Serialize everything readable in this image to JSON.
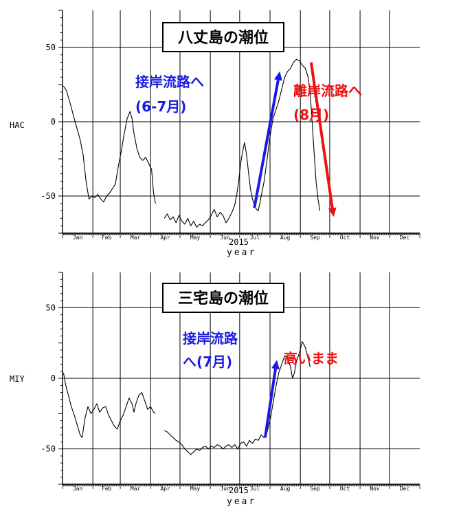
{
  "chart_data": [
    {
      "type": "line",
      "title": "八丈島の潮位",
      "ylabel": "HAC",
      "xlabel": "year",
      "year_label": "2015",
      "ylim": [
        -75,
        75
      ],
      "yticks": [
        50,
        0,
        -50
      ],
      "month_labels": [
        "Jan",
        "Feb",
        "Mar",
        "Apr",
        "May",
        "Jun",
        "Jul",
        "Aug",
        "Sep",
        "Oct",
        "Nov",
        "Dec"
      ],
      "grid": true,
      "series": [
        {
          "color": "#000000",
          "segments": [
            [
              [
                1,
                24
              ],
              [
                4,
                21
              ],
              [
                8,
                12
              ],
              [
                12,
                2
              ],
              [
                15,
                -5
              ],
              [
                18,
                -12
              ],
              [
                21,
                -22
              ],
              [
                24,
                -40
              ],
              [
                27,
                -52
              ],
              [
                30,
                -50
              ],
              [
                33,
                -51
              ],
              [
                36,
                -49
              ],
              [
                39,
                -52
              ],
              [
                42,
                -54
              ],
              [
                45,
                -50
              ],
              [
                48,
                -48
              ],
              [
                51,
                -45
              ],
              [
                54,
                -42
              ],
              [
                57,
                -30
              ],
              [
                60,
                -20
              ],
              [
                63,
                -8
              ],
              [
                66,
                2
              ],
              [
                69,
                7
              ],
              [
                71,
                2
              ],
              [
                73,
                -8
              ],
              [
                76,
                -18
              ],
              [
                79,
                -24
              ],
              [
                82,
                -26
              ],
              [
                85,
                -24
              ],
              [
                88,
                -28
              ],
              [
                91,
                -32
              ],
              [
                93,
                -48
              ],
              [
                95,
                -55
              ]
            ],
            [
              [
                104,
                -65
              ],
              [
                107,
                -62
              ],
              [
                110,
                -66
              ],
              [
                113,
                -64
              ],
              [
                116,
                -68
              ],
              [
                119,
                -63
              ],
              [
                122,
                -67
              ],
              [
                125,
                -69
              ],
              [
                128,
                -65
              ],
              [
                131,
                -70
              ],
              [
                134,
                -67
              ],
              [
                137,
                -71
              ],
              [
                140,
                -69
              ],
              [
                143,
                -70
              ],
              [
                146,
                -68
              ],
              [
                149,
                -66
              ],
              [
                152,
                -63
              ],
              [
                155,
                -59
              ],
              [
                158,
                -64
              ],
              [
                161,
                -61
              ],
              [
                164,
                -63
              ],
              [
                167,
                -68
              ],
              [
                170,
                -65
              ],
              [
                173,
                -61
              ],
              [
                176,
                -56
              ],
              [
                178,
                -49
              ],
              [
                180,
                -40
              ],
              [
                182,
                -28
              ],
              [
                184,
                -20
              ],
              [
                186,
                -14
              ],
              [
                188,
                -22
              ],
              [
                190,
                -34
              ],
              [
                192,
                -45
              ],
              [
                194,
                -52
              ],
              [
                197,
                -58
              ],
              [
                200,
                -60
              ],
              [
                203,
                -50
              ],
              [
                206,
                -40
              ],
              [
                209,
                -25
              ],
              [
                212,
                -10
              ],
              [
                215,
                2
              ],
              [
                218,
                8
              ],
              [
                221,
                14
              ],
              [
                224,
                22
              ],
              [
                227,
                30
              ],
              [
                230,
                34
              ],
              [
                233,
                36
              ],
              [
                236,
                40
              ],
              [
                239,
                42
              ],
              [
                242,
                41
              ],
              [
                245,
                38
              ],
              [
                248,
                36
              ],
              [
                251,
                30
              ],
              [
                253,
                20
              ],
              [
                255,
                0
              ],
              [
                257,
                -20
              ],
              [
                259,
                -40
              ],
              [
                261,
                -52
              ],
              [
                263,
                -60
              ]
            ]
          ]
        }
      ],
      "arrows": [
        {
          "color": "#1a1ae6",
          "from": [
            196,
            -58
          ],
          "to": [
            222,
            34
          ]
        },
        {
          "color": "#ee1111",
          "from": [
            254,
            40
          ],
          "to": [
            277,
            -64
          ]
        }
      ],
      "annotations": [
        {
          "text": "接岸流路へ",
          "color": "#1a1ae6"
        },
        {
          "text": "(6-7月)",
          "color": "#1a1ae6"
        },
        {
          "text": "離岸流路へ",
          "color": "#ee1111"
        },
        {
          "text": "(8月)",
          "color": "#ee1111"
        }
      ]
    },
    {
      "type": "line",
      "title": "三宅島の潮位",
      "ylabel": "MIY",
      "xlabel": "year",
      "year_label": "2015",
      "ylim": [
        -75,
        75
      ],
      "yticks": [
        50,
        0,
        -50
      ],
      "month_labels": [
        "Jan",
        "Feb",
        "Mar",
        "Apr",
        "May",
        "Jun",
        "Jul",
        "Aug",
        "Sep",
        "Oct",
        "Nov",
        "Dec"
      ],
      "grid": true,
      "series": [
        {
          "color": "#000000",
          "segments": [
            [
              [
                1,
                4
              ],
              [
                3,
                -4
              ],
              [
                6,
                -12
              ],
              [
                9,
                -20
              ],
              [
                12,
                -26
              ],
              [
                15,
                -33
              ],
              [
                18,
                -40
              ],
              [
                20,
                -42
              ],
              [
                23,
                -28
              ],
              [
                26,
                -20
              ],
              [
                29,
                -25
              ],
              [
                32,
                -22
              ],
              [
                35,
                -18
              ],
              [
                38,
                -24
              ],
              [
                41,
                -21
              ],
              [
                44,
                -20
              ],
              [
                47,
                -26
              ],
              [
                50,
                -30
              ],
              [
                53,
                -34
              ],
              [
                56,
                -36
              ],
              [
                59,
                -30
              ],
              [
                62,
                -26
              ],
              [
                65,
                -20
              ],
              [
                68,
                -14
              ],
              [
                71,
                -18
              ],
              [
                73,
                -24
              ],
              [
                75,
                -18
              ],
              [
                78,
                -12
              ],
              [
                81,
                -10
              ],
              [
                84,
                -16
              ],
              [
                87,
                -22
              ],
              [
                90,
                -20
              ],
              [
                93,
                -24
              ],
              [
                95,
                -25
              ]
            ],
            [
              [
                104,
                -37
              ],
              [
                107,
                -38
              ],
              [
                110,
                -40
              ],
              [
                113,
                -42
              ],
              [
                116,
                -44
              ],
              [
                119,
                -45
              ],
              [
                122,
                -47
              ],
              [
                125,
                -50
              ],
              [
                128,
                -52
              ],
              [
                131,
                -54
              ],
              [
                134,
                -52
              ],
              [
                137,
                -50
              ],
              [
                140,
                -51
              ],
              [
                143,
                -49
              ],
              [
                146,
                -48
              ],
              [
                149,
                -50
              ],
              [
                152,
                -48
              ],
              [
                155,
                -49
              ],
              [
                158,
                -47
              ],
              [
                161,
                -48
              ],
              [
                164,
                -50
              ],
              [
                167,
                -48
              ],
              [
                170,
                -47
              ],
              [
                173,
                -49
              ],
              [
                176,
                -47
              ],
              [
                179,
                -50
              ],
              [
                182,
                -46
              ],
              [
                185,
                -45
              ],
              [
                188,
                -48
              ],
              [
                191,
                -44
              ],
              [
                194,
                -46
              ],
              [
                197,
                -43
              ],
              [
                200,
                -44
              ],
              [
                203,
                -40
              ],
              [
                206,
                -42
              ],
              [
                209,
                -38
              ],
              [
                212,
                -30
              ],
              [
                215,
                -18
              ],
              [
                218,
                -6
              ],
              [
                221,
                4
              ],
              [
                224,
                10
              ],
              [
                227,
                16
              ],
              [
                230,
                14
              ],
              [
                233,
                8
              ],
              [
                235,
                0
              ],
              [
                237,
                4
              ],
              [
                239,
                12
              ],
              [
                242,
                18
              ],
              [
                245,
                26
              ],
              [
                248,
                22
              ],
              [
                251,
                14
              ],
              [
                253,
                8
              ]
            ]
          ]
        }
      ],
      "arrows": [
        {
          "color": "#1a1ae6",
          "from": [
            207,
            -42
          ],
          "to": [
            219,
            13
          ]
        }
      ],
      "annotations": [
        {
          "text": "接岸流路",
          "color": "#1a1ae6"
        },
        {
          "text": "へ(7月)",
          "color": "#1a1ae6"
        },
        {
          "text": "高いまま",
          "color": "#ee1111"
        }
      ]
    }
  ]
}
